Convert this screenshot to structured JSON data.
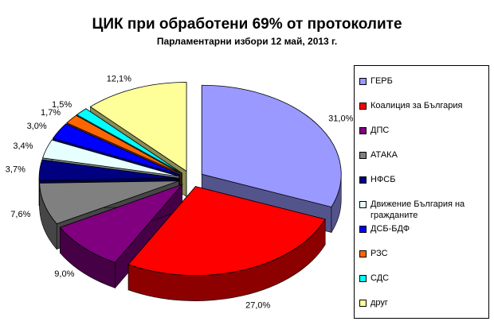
{
  "chart_data": {
    "type": "pie",
    "title": "ЦИК при обработени 69% от протоколите",
    "subtitle": "Парламентарни избори 12 май, 2013 г.",
    "categories": [
      "ГЕРБ",
      "Коалиция за България",
      "ДПС",
      "АТАКА",
      "НФСБ",
      "Движение България на гражданите",
      "ДСБ-БДФ",
      "РЗС",
      "СДС",
      "друг"
    ],
    "values": [
      31.0,
      27.0,
      9.0,
      7.6,
      3.7,
      3.4,
      3.0,
      1.7,
      1.5,
      12.1
    ],
    "data_labels": [
      "31,0%",
      "27,0%",
      "9,0%",
      "7,6%",
      "3,7%",
      "3,4%",
      "3,0%",
      "1,7%",
      "1,5%",
      "12,1%"
    ],
    "colors": [
      "#9999FF",
      "#FF0000",
      "#800080",
      "#808080",
      "#000080",
      "#E6FFFF",
      "#0000FF",
      "#FF6600",
      "#00FFFF",
      "#FFFF99"
    ],
    "exploded": true,
    "three_d": true,
    "legend_position": "right"
  }
}
